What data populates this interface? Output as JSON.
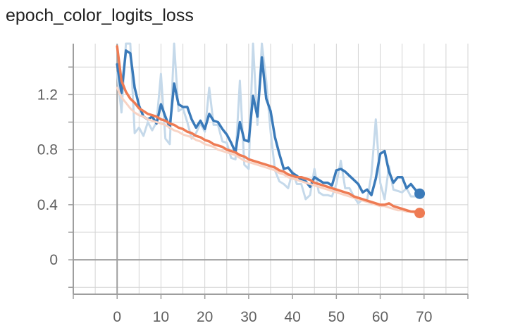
{
  "chart_data": {
    "type": "line",
    "title": "epoch_color_logits_loss",
    "xlim": [
      -10,
      80
    ],
    "ylim": [
      -0.25,
      1.57
    ],
    "x_ticks": [
      0,
      10,
      20,
      30,
      40,
      50,
      60,
      70
    ],
    "y_ticks": [
      0,
      0.4,
      0.8,
      1.2
    ],
    "y_tick_labels": [
      "0",
      "0.4",
      "0.8",
      "1.2"
    ],
    "grid": true,
    "colors": {
      "blue_smoothed": "#3a7ab9",
      "blue_raw": "#c5d9ea",
      "orange_smoothed": "#ee7b53",
      "orange_raw": "#f8d3c4",
      "grid": "#d3d3d3",
      "axis": "#9e9e9e"
    },
    "series": [
      {
        "id": "blue-raw",
        "color": "#c5d9ea",
        "x": [
          0,
          1,
          2,
          3,
          4,
          5,
          6,
          7,
          8,
          9,
          10,
          11,
          12,
          13,
          14,
          15,
          16,
          17,
          18,
          19,
          20,
          21,
          22,
          23,
          24,
          25,
          26,
          27,
          28,
          29,
          30,
          31,
          32,
          33,
          34,
          35,
          36,
          37,
          38,
          39,
          40,
          41,
          42,
          43,
          44,
          45,
          46,
          47,
          48,
          49,
          50,
          51,
          52,
          53,
          54,
          55,
          56,
          57,
          58,
          59,
          60,
          61,
          62,
          63,
          64,
          65,
          66,
          67,
          68,
          69
        ],
        "y": [
          1.36,
          1.07,
          1.7,
          1.62,
          0.92,
          0.96,
          0.9,
          1.0,
          0.94,
          1.0,
          1.35,
          0.88,
          0.84,
          1.6,
          1.08,
          1.1,
          1.0,
          0.88,
          0.92,
          0.99,
          0.93,
          1.25,
          0.98,
          0.98,
          0.86,
          0.85,
          0.74,
          0.73,
          1.3,
          0.69,
          0.66,
          1.58,
          0.98,
          1.6,
          1.3,
          0.93,
          0.65,
          0.57,
          0.55,
          0.52,
          0.64,
          0.55,
          0.55,
          0.44,
          0.47,
          0.66,
          0.49,
          0.47,
          0.47,
          0.46,
          0.55,
          0.72,
          0.52,
          0.52,
          0.46,
          0.41,
          0.44,
          0.43,
          0.62,
          1.02,
          0.56,
          0.44,
          0.68,
          0.51,
          0.5,
          0.49,
          0.52,
          0.46,
          0.46,
          0.46
        ]
      },
      {
        "id": "blue-smoothed",
        "color": "#3a7ab9",
        "x": [
          0,
          1,
          2,
          3,
          4,
          5,
          6,
          7,
          8,
          9,
          10,
          11,
          12,
          13,
          14,
          15,
          16,
          17,
          18,
          19,
          20,
          21,
          22,
          23,
          24,
          25,
          26,
          27,
          28,
          29,
          30,
          31,
          32,
          33,
          34,
          35,
          36,
          37,
          38,
          39,
          40,
          41,
          42,
          43,
          44,
          45,
          46,
          47,
          48,
          49,
          50,
          51,
          52,
          53,
          54,
          55,
          56,
          57,
          58,
          59,
          60,
          61,
          62,
          63,
          64,
          65,
          66,
          67,
          68,
          69
        ],
        "y": [
          1.42,
          1.21,
          1.52,
          1.5,
          1.25,
          1.12,
          1.04,
          1.02,
          1.04,
          0.99,
          1.13,
          1.04,
          0.96,
          1.28,
          1.13,
          1.11,
          1.11,
          1.02,
          0.96,
          1.01,
          0.95,
          1.06,
          1.01,
          1.0,
          0.95,
          0.91,
          0.85,
          0.78,
          1.0,
          0.87,
          0.86,
          1.19,
          1.04,
          1.47,
          1.17,
          1.08,
          0.89,
          0.77,
          0.66,
          0.67,
          0.63,
          0.61,
          0.58,
          0.57,
          0.53,
          0.6,
          0.58,
          0.56,
          0.56,
          0.54,
          0.65,
          0.66,
          0.64,
          0.61,
          0.58,
          0.55,
          0.49,
          0.51,
          0.47,
          0.59,
          0.77,
          0.79,
          0.64,
          0.56,
          0.6,
          0.6,
          0.52,
          0.55,
          0.51,
          0.48
        ]
      },
      {
        "id": "orange-raw",
        "color": "#f8d3c4",
        "x": [
          0,
          1,
          2,
          3,
          4,
          5,
          6,
          7,
          8,
          9,
          10,
          11,
          12,
          13,
          14,
          15,
          16,
          17,
          18,
          19,
          20,
          21,
          22,
          23,
          24,
          25,
          26,
          27,
          28,
          29,
          30,
          31,
          32,
          33,
          34,
          35,
          36,
          37,
          38,
          39,
          40,
          41,
          42,
          43,
          44,
          45,
          46,
          47,
          48,
          49,
          50,
          51,
          52,
          53,
          54,
          55,
          56,
          57,
          58,
          59,
          60,
          61,
          62,
          63,
          64,
          65,
          66,
          67,
          68,
          69
        ],
        "y": [
          1.25,
          1.18,
          1.14,
          1.1,
          1.07,
          1.05,
          1.04,
          1.02,
          1.01,
          1.0,
          0.99,
          0.98,
          0.96,
          0.94,
          0.93,
          0.91,
          0.9,
          0.89,
          0.87,
          0.86,
          0.84,
          0.83,
          0.82,
          0.8,
          0.79,
          0.78,
          0.77,
          0.76,
          0.74,
          0.72,
          0.71,
          0.7,
          0.69,
          0.68,
          0.67,
          0.66,
          0.65,
          0.63,
          0.62,
          0.6,
          0.59,
          0.58,
          0.57,
          0.56,
          0.55,
          0.54,
          0.53,
          0.52,
          0.51,
          0.5,
          0.49,
          0.48,
          0.47,
          0.46,
          0.45,
          0.44,
          0.43,
          0.42,
          0.41,
          0.4,
          0.39,
          0.39,
          0.38,
          0.37,
          0.36,
          0.36,
          0.35,
          0.35,
          0.34,
          0.34
        ]
      },
      {
        "id": "orange-smoothed",
        "color": "#ee7b53",
        "x": [
          0,
          1,
          2,
          3,
          4,
          5,
          6,
          7,
          8,
          9,
          10,
          11,
          12,
          13,
          14,
          15,
          16,
          17,
          18,
          19,
          20,
          21,
          22,
          23,
          24,
          25,
          26,
          27,
          28,
          29,
          30,
          31,
          32,
          33,
          34,
          35,
          36,
          37,
          38,
          39,
          40,
          41,
          42,
          43,
          44,
          45,
          46,
          47,
          48,
          49,
          50,
          51,
          52,
          53,
          54,
          55,
          56,
          57,
          58,
          59,
          60,
          61,
          62,
          63,
          64,
          65,
          66,
          67,
          68,
          69
        ],
        "y": [
          1.55,
          1.3,
          1.22,
          1.17,
          1.14,
          1.1,
          1.08,
          1.06,
          1.05,
          1.04,
          1.02,
          1.01,
          0.99,
          0.98,
          0.96,
          0.95,
          0.93,
          0.92,
          0.9,
          0.89,
          0.87,
          0.86,
          0.84,
          0.83,
          0.82,
          0.8,
          0.79,
          0.78,
          0.76,
          0.75,
          0.73,
          0.72,
          0.71,
          0.7,
          0.69,
          0.68,
          0.67,
          0.65,
          0.64,
          0.62,
          0.61,
          0.6,
          0.6,
          0.59,
          0.58,
          0.56,
          0.55,
          0.54,
          0.53,
          0.52,
          0.51,
          0.5,
          0.49,
          0.48,
          0.46,
          0.45,
          0.44,
          0.43,
          0.42,
          0.41,
          0.4,
          0.4,
          0.41,
          0.39,
          0.38,
          0.37,
          0.36,
          0.35,
          0.35,
          0.34
        ]
      }
    ]
  }
}
